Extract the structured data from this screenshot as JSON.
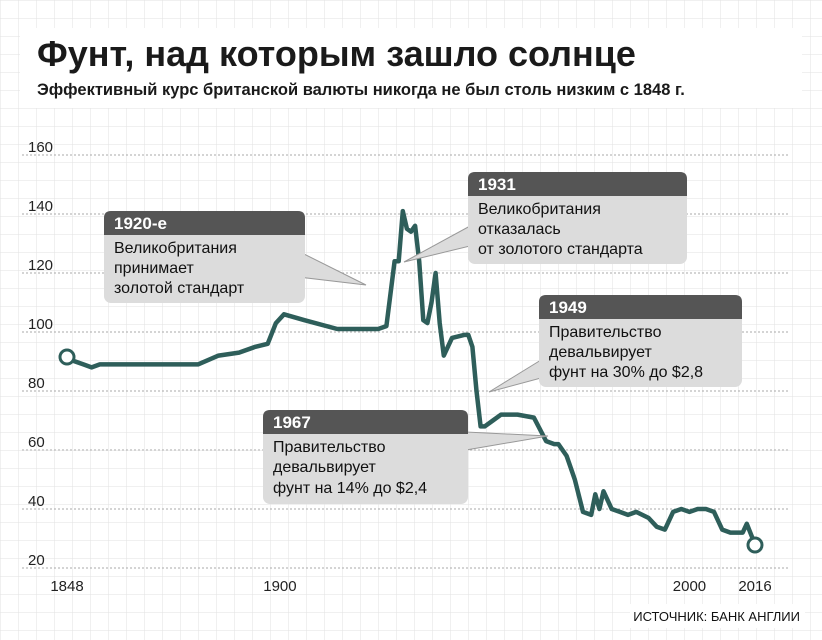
{
  "title": "Фунт, над которым зашло солнце",
  "subtitle": "Эффективный курс британской валюты никогда не был столь низким с 1848 г.",
  "source": "ИСТОЧНИК: БАНК АНГЛИИ",
  "colors": {
    "line": "#2e5e5a",
    "callout_header": "#555555",
    "callout_body": "#dcdcdc",
    "grid": "#aaaaaa",
    "background_grid": "#e2e2e2"
  },
  "callouts": [
    {
      "header": "1920-е",
      "lines": [
        "Великобритания",
        "принимает",
        "золотой стандарт"
      ]
    },
    {
      "header": "1931",
      "lines": [
        "Великобритания",
        "отказалась",
        "от золотого стандарта"
      ]
    },
    {
      "header": "1949",
      "lines": [
        "Правительство",
        "девальвирует",
        "фунт на 30% до $2,8"
      ]
    },
    {
      "header": "1967",
      "lines": [
        "Правительство",
        "девальвирует",
        "фунт на 14% до $2,4"
      ]
    }
  ],
  "chart_data": {
    "type": "line",
    "title": "Фунт, над которым зашло солнце",
    "subtitle": "Эффективный курс британской валюты никогда не был столь низким с 1848 г.",
    "xlabel": "",
    "ylabel": "",
    "xlim": [
      1848,
      2016
    ],
    "ylim": [
      20,
      160
    ],
    "x_ticks": [
      "1848",
      "1900",
      "2000",
      "2016"
    ],
    "y_ticks": [
      "20",
      "40",
      "60",
      "80",
      "100",
      "120",
      "140",
      "160"
    ],
    "grid": true,
    "series": [
      {
        "x": [
          1848,
          1850,
          1852,
          1854,
          1856,
          1860,
          1866,
          1880,
          1885,
          1890,
          1894,
          1897,
          1899,
          1901,
          1906,
          1914,
          1919,
          1922,
          1924,
          1926,
          1928,
          1929,
          1930,
          1931,
          1932,
          1933,
          1934,
          1935,
          1936,
          1937,
          1938,
          1939,
          1940,
          1942,
          1945,
          1946,
          1947,
          1948,
          1949,
          1950,
          1952,
          1954,
          1958,
          1962,
          1965,
          1967,
          1968,
          1970,
          1972,
          1974,
          1976,
          1977,
          1978,
          1979,
          1981,
          1983,
          1985,
          1987,
          1990,
          1992,
          1994,
          1996,
          1998,
          2000,
          2002,
          2004,
          2006,
          2008,
          2010,
          2012,
          2013,
          2014,
          2016
        ],
        "y": [
          91,
          90,
          89,
          88,
          89,
          89,
          89,
          89,
          92,
          93,
          95,
          96,
          103,
          106,
          104,
          101,
          101,
          101,
          101,
          102,
          124,
          124,
          141,
          135,
          134,
          136,
          124,
          104,
          103,
          110,
          120,
          103,
          92,
          98,
          99,
          99,
          95,
          80,
          68,
          68,
          70,
          72,
          72,
          71,
          63,
          62,
          62,
          58,
          50,
          39,
          38,
          45,
          40,
          46,
          40,
          39,
          38,
          39,
          37,
          34,
          33,
          39,
          40,
          39,
          40,
          40,
          39,
          33,
          32,
          32,
          32,
          35,
          28
        ]
      }
    ]
  }
}
